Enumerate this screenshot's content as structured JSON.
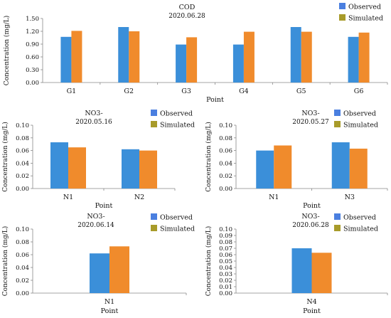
{
  "colors": {
    "observed": "#3b8fd9",
    "simulated": "#f08b2c",
    "observed_legend": "#4a7fe0",
    "simulated_legend": "#a89b2a"
  },
  "chart_data": [
    {
      "type": "bar",
      "title": "COD",
      "subtitle": "2020.06.28",
      "xlabel": "Point",
      "ylabel": "Concentration  (mg/L)",
      "categories": [
        "G1",
        "G2",
        "G3",
        "G4",
        "G5",
        "G6"
      ],
      "ylim": [
        0,
        1.5
      ],
      "yticks": [
        "0.00",
        "0.30",
        "0.60",
        "0.90",
        "1.20",
        "1.50"
      ],
      "series": [
        {
          "name": "Observed",
          "values": [
            1.07,
            1.3,
            0.89,
            0.89,
            1.3,
            1.07
          ]
        },
        {
          "name": "Simulated",
          "values": [
            1.21,
            1.2,
            1.06,
            1.19,
            1.19,
            1.17
          ]
        }
      ],
      "legend": "top-right"
    },
    {
      "type": "bar",
      "title": "NO3-",
      "subtitle": "2020.05.16",
      "xlabel": "Point",
      "ylabel": "Concentration  (mg/L)",
      "categories": [
        "N1",
        "N2"
      ],
      "ylim": [
        0,
        0.1
      ],
      "yticks": [
        "0.00",
        "0.02",
        "0.04",
        "0.06",
        "0.08",
        "0.10"
      ],
      "series": [
        {
          "name": "Observed",
          "values": [
            0.073,
            0.062
          ]
        },
        {
          "name": "Simulated",
          "values": [
            0.065,
            0.06
          ]
        }
      ],
      "legend": "top-right"
    },
    {
      "type": "bar",
      "title": "NO3-",
      "subtitle": "2020.05.27",
      "xlabel": "Point",
      "ylabel": "Concentration  (mg/L)",
      "categories": [
        "N1",
        "N3"
      ],
      "ylim": [
        0,
        0.1
      ],
      "yticks": [
        "0.00",
        "0.02",
        "0.04",
        "0.06",
        "0.08",
        "0.10"
      ],
      "series": [
        {
          "name": "Observed",
          "values": [
            0.06,
            0.073
          ]
        },
        {
          "name": "Simulated",
          "values": [
            0.068,
            0.063
          ]
        }
      ],
      "legend": "top-right"
    },
    {
      "type": "bar",
      "title": "NO3-",
      "subtitle": "2020.06.14",
      "xlabel": "Point",
      "ylabel": "Concentration  (mg/L)",
      "categories": [
        "N1"
      ],
      "ylim": [
        0,
        0.1
      ],
      "yticks": [
        "0.00",
        "0.02",
        "0.04",
        "0.06",
        "0.08",
        "0.10"
      ],
      "series": [
        {
          "name": "Observed",
          "values": [
            0.062
          ]
        },
        {
          "name": "Simulated",
          "values": [
            0.073
          ]
        }
      ],
      "legend": "top-right"
    },
    {
      "type": "bar",
      "title": "NO3-",
      "subtitle": "2020.06.28",
      "xlabel": "Point",
      "ylabel": "Concentration  (mg/L)",
      "categories": [
        "N4"
      ],
      "ylim": [
        0,
        0.1
      ],
      "yticks": [
        "0.00",
        "0.01",
        "0.02",
        "0.03",
        "0.04",
        "0.05",
        "0.06",
        "0.07",
        "0.08",
        "0.09",
        "0.10"
      ],
      "series": [
        {
          "name": "Observed",
          "values": [
            0.07
          ]
        },
        {
          "name": "Simulated",
          "values": [
            0.063
          ]
        }
      ],
      "legend": "top-right"
    }
  ]
}
